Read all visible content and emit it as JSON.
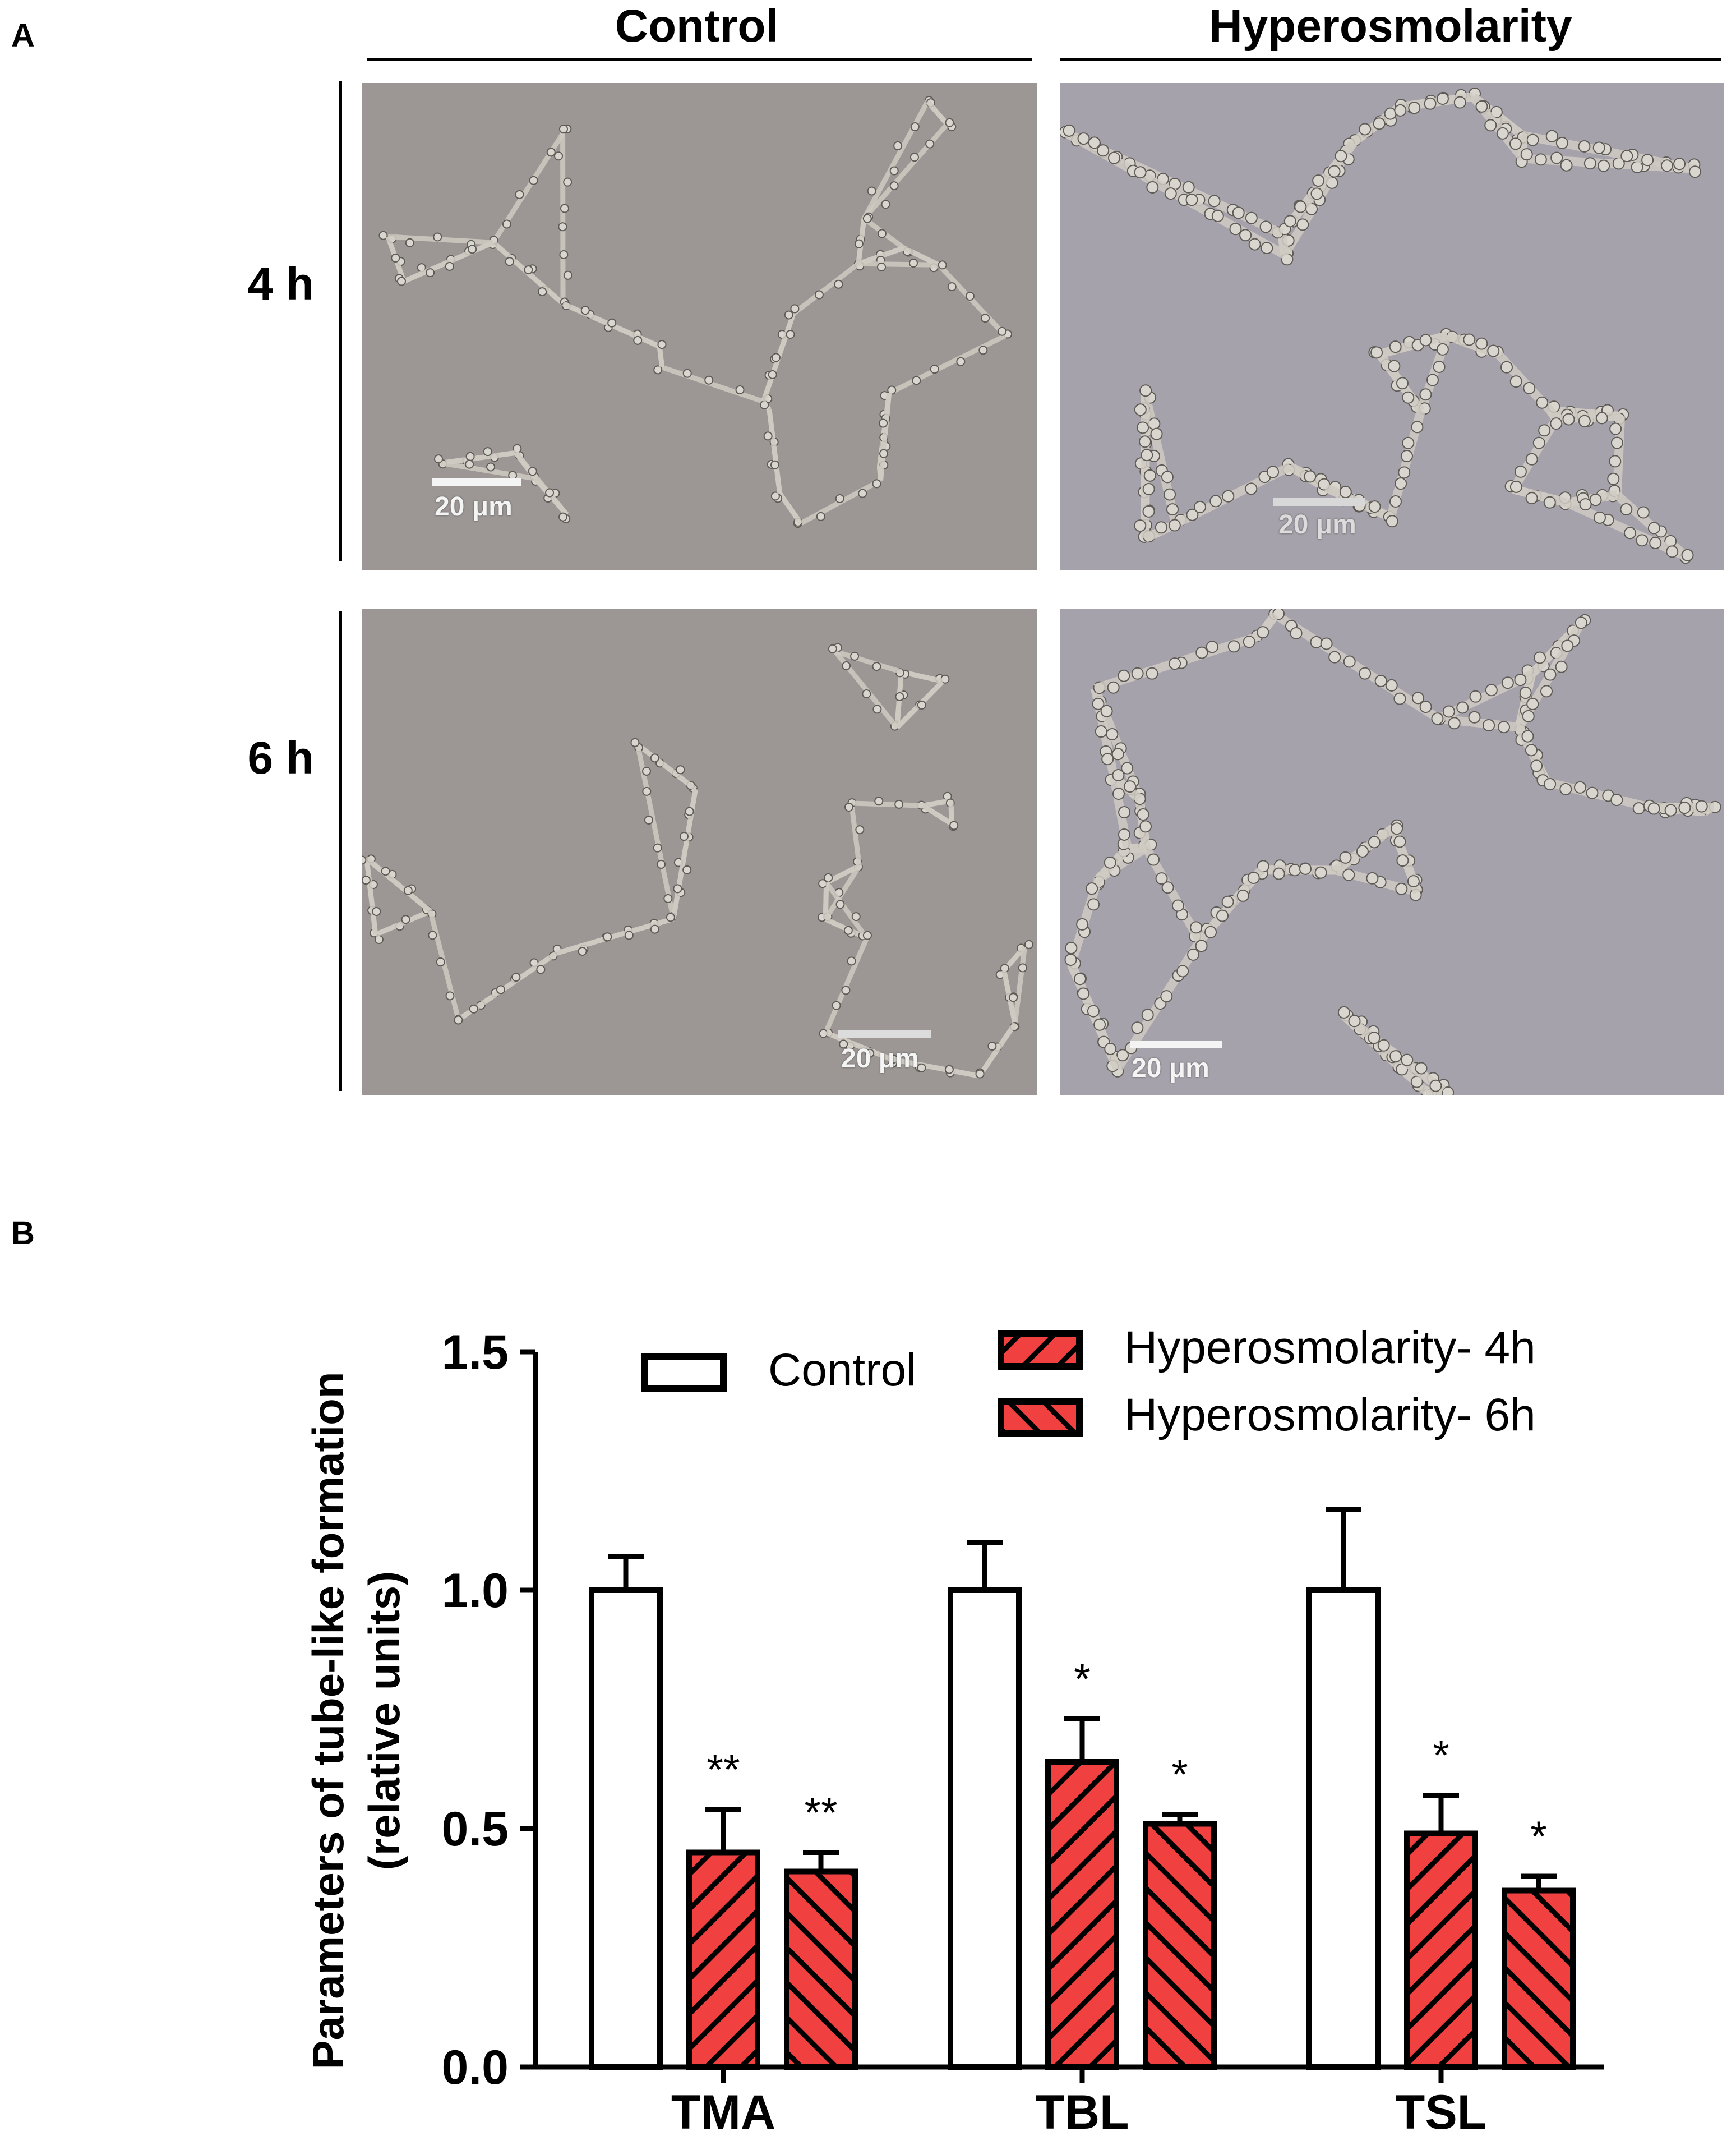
{
  "panel_a": {
    "label": "A",
    "columns": [
      "Control",
      "Hyperosmolarity"
    ],
    "rows": [
      "4 h",
      "6 h"
    ],
    "scale_bar": "20 μm"
  },
  "panel_b": {
    "label": "B"
  },
  "colors": {
    "control_fill": "#ffffff",
    "hyper_fill": "#f04040",
    "micro_bg_control": "#9c9794",
    "micro_bg_hyper": "#a6a2ab",
    "cell": "#d9d6cf"
  },
  "chart_data": {
    "type": "bar",
    "categories": [
      "TMA",
      "TBL",
      "TSL"
    ],
    "ylabel": "Parameters of tube-like formation (relative units)",
    "ylabel_lines": [
      "Parameters of tube-like formation",
      "(relative units)"
    ],
    "ylim": [
      0.0,
      1.5
    ],
    "yticks": [
      0.0,
      0.5,
      1.0,
      1.5
    ],
    "ytick_labels": [
      "0.0",
      "0.5",
      "1.0",
      "1.5"
    ],
    "legend_position": "top",
    "series": [
      {
        "name": "Control",
        "pattern": "none",
        "fill": "#ffffff",
        "values": [
          1.0,
          1.0,
          1.0
        ],
        "errors": [
          0.07,
          0.1,
          0.17
        ],
        "significance": [
          "",
          "",
          ""
        ]
      },
      {
        "name": "Hyperosmolarity- 4h",
        "pattern": "forward-hatch",
        "fill": "#f04040",
        "values": [
          0.45,
          0.64,
          0.49
        ],
        "errors": [
          0.09,
          0.09,
          0.08
        ],
        "significance": [
          "**",
          "*",
          "*"
        ]
      },
      {
        "name": "Hyperosmolarity- 6h",
        "pattern": "back-hatch",
        "fill": "#f04040",
        "values": [
          0.41,
          0.51,
          0.37
        ],
        "errors": [
          0.04,
          0.02,
          0.03
        ],
        "significance": [
          "**",
          "*",
          "*"
        ]
      }
    ]
  }
}
